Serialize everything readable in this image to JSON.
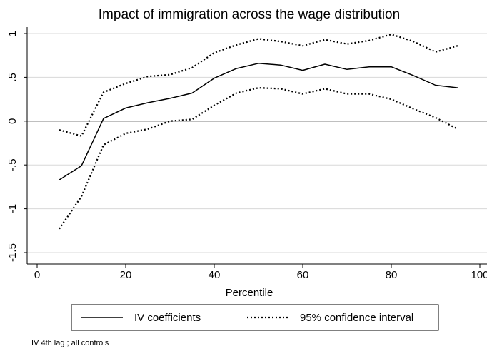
{
  "chart_data": {
    "type": "line",
    "title": "Impact of immigration across the wage distribution",
    "xlabel": "Percentile",
    "ylabel": "",
    "xlim": [
      0,
      100
    ],
    "ylim": [
      -1.5,
      1
    ],
    "xticks": [
      0,
      20,
      40,
      60,
      80,
      100
    ],
    "xtick_labels": [
      "0",
      "20",
      "40",
      "60",
      "80",
      "100"
    ],
    "yticks": [
      -1.5,
      -1,
      -0.5,
      0,
      0.5,
      1
    ],
    "ytick_labels": [
      "-1.5",
      "-1",
      "-.5",
      "0",
      ".5",
      "1"
    ],
    "x": [
      5,
      10,
      15,
      20,
      25,
      30,
      35,
      40,
      45,
      50,
      55,
      60,
      65,
      70,
      75,
      80,
      85,
      90,
      95
    ],
    "series": [
      {
        "name": "IV coefficients",
        "style": "solid",
        "values": [
          -0.67,
          -0.51,
          0.03,
          0.15,
          0.21,
          0.26,
          0.32,
          0.49,
          0.6,
          0.66,
          0.64,
          0.58,
          0.65,
          0.59,
          0.62,
          0.62,
          0.52,
          0.41,
          0.38
        ]
      },
      {
        "name": "95% confidence interval",
        "style": "dotted",
        "values": [
          -0.1,
          -0.17,
          0.33,
          0.43,
          0.51,
          0.53,
          0.61,
          0.78,
          0.87,
          0.94,
          0.91,
          0.86,
          0.93,
          0.88,
          0.92,
          0.99,
          0.91,
          0.79,
          0.86
        ]
      },
      {
        "name": "",
        "style": "dotted",
        "values": [
          -1.23,
          -0.86,
          -0.27,
          -0.14,
          -0.09,
          0.0,
          0.02,
          0.18,
          0.32,
          0.38,
          0.37,
          0.31,
          0.37,
          0.31,
          0.31,
          0.25,
          0.14,
          0.04,
          -0.09
        ]
      }
    ],
    "reference_line": 0,
    "grid": true,
    "legend_position": "bottom",
    "legend": [
      "IV coefficients",
      "95% confidence interval"
    ],
    "note": "IV 4th lag ; all controls"
  }
}
